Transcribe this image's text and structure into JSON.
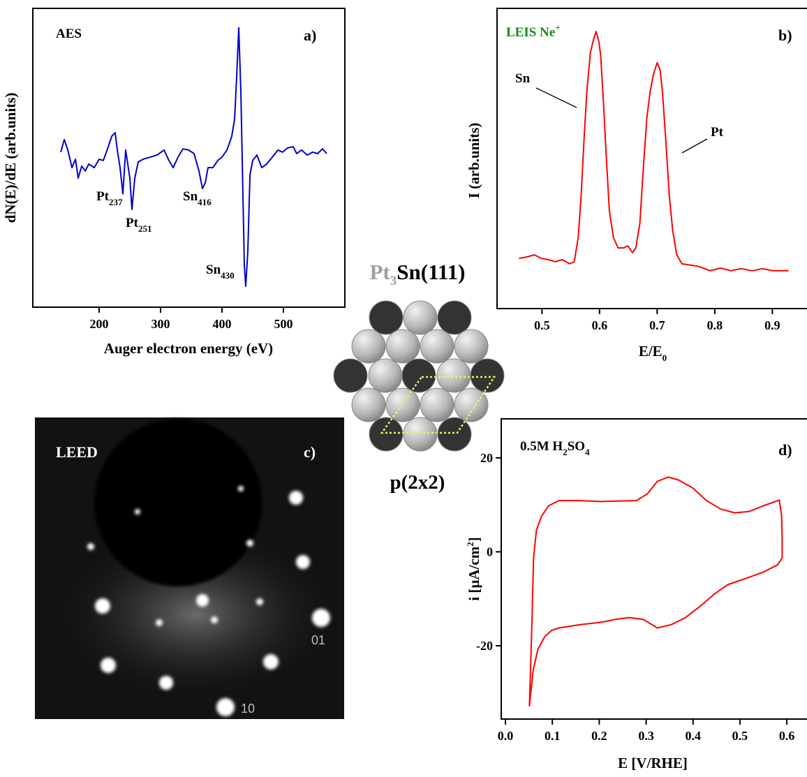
{
  "chart_data": [
    {
      "type": "line",
      "title": "AES",
      "panel": "a)",
      "xlabel": "Auger electron energy (eV)",
      "ylabel": "dN(E)/dE (arb.units)",
      "xlim": [
        92,
        600
      ],
      "ylim": [
        0,
        100
      ],
      "xticks": [
        200,
        300,
        400,
        500
      ],
      "series": [
        {
          "color": "#0000cc",
          "x": [
            137.5,
            143.2,
            148.9,
            155.7,
            161.4,
            165.9,
            171.6,
            177.3,
            183,
            192,
            200,
            206.8,
            214.8,
            220.5,
            226.1,
            229.5,
            234.1,
            238.6,
            243.2,
            246.6,
            250,
            253.4,
            258,
            263.6,
            271.6,
            283,
            294.3,
            305.7,
            313.6,
            320.5,
            328.4,
            336.4,
            345.5,
            354.5,
            362.5,
            368.2,
            372.7,
            377.3,
            385.2,
            393.2,
            400,
            408,
            415.9,
            420.5,
            423.9,
            427.3,
            430.7,
            434.1,
            436.4,
            438.6,
            442,
            445.5,
            450,
            456.8,
            464.8,
            472.7,
            481.8,
            490.9,
            498.9,
            506.8,
            515.9,
            521.6,
            529.5,
            538.6,
            547.7,
            555.7,
            563.6,
            570.5
          ],
          "values": [
            51.9,
            56.1,
            52.6,
            46.7,
            49.5,
            43.2,
            47.2,
            45.6,
            47.9,
            46.7,
            49.5,
            49.1,
            53.7,
            57.2,
            58.4,
            52.6,
            46.7,
            37.9,
            52.6,
            47.9,
            43.2,
            32.7,
            43.2,
            48.6,
            49.5,
            50.2,
            50.9,
            52.6,
            49.1,
            46.7,
            50.2,
            53,
            52.6,
            51.4,
            45.6,
            39.7,
            41.6,
            46.7,
            46.7,
            49.1,
            50.2,
            52.6,
            57.2,
            63.1,
            77.1,
            93.5,
            72.4,
            37.4,
            14,
            7,
            18.7,
            44.4,
            49.1,
            50.9,
            46.7,
            47.9,
            50.2,
            52.6,
            51.9,
            53.3,
            53.7,
            51.4,
            52.6,
            50.9,
            51.9,
            51.4,
            53,
            51.4
          ]
        }
      ],
      "annotations": [
        {
          "text": "Pt",
          "sub": "237"
        },
        {
          "text": "Pt",
          "sub": "251"
        },
        {
          "text": "Sn",
          "sub": "416"
        },
        {
          "text": "Sn",
          "sub": "430"
        }
      ]
    },
    {
      "type": "line",
      "title": [
        "LEIS Ne",
        "+"
      ],
      "title_color": "#138a13",
      "panel": "b)",
      "xlabel": [
        "E/E",
        "0"
      ],
      "ylabel": "I (arb.units)",
      "xlim": [
        0.422,
        0.965
      ],
      "ylim": [
        0,
        100
      ],
      "xticks": [
        0.5,
        0.6,
        0.7,
        0.8,
        0.9
      ],
      "series": [
        {
          "color": "#ff0000",
          "x": [
            0.46,
            0.474,
            0.487,
            0.499,
            0.511,
            0.523,
            0.535,
            0.548,
            0.556,
            0.563,
            0.568,
            0.573,
            0.578,
            0.584,
            0.59,
            0.594,
            0.599,
            0.602,
            0.607,
            0.612,
            0.617,
            0.624,
            0.632,
            0.642,
            0.649,
            0.657,
            0.663,
            0.67,
            0.676,
            0.682,
            0.688,
            0.694,
            0.7,
            0.705,
            0.709,
            0.715,
            0.721,
            0.727,
            0.734,
            0.743,
            0.761,
            0.773,
            0.792,
            0.81,
            0.828,
            0.846,
            0.865,
            0.883,
            0.901,
            0.928
          ],
          "values": [
            16.7,
            17.2,
            17.9,
            16.7,
            16.3,
            15.6,
            16.3,
            14.9,
            15.6,
            23.7,
            37.7,
            56.3,
            72.6,
            85.3,
            90,
            92.3,
            88.8,
            84.2,
            67.9,
            49.3,
            32.6,
            23.7,
            20.2,
            20.2,
            20.9,
            18.6,
            20.2,
            28.4,
            47,
            63.3,
            72.6,
            78.4,
            81.9,
            79.5,
            72.6,
            56.3,
            37.7,
            26,
            17.9,
            14.9,
            14.4,
            14,
            12.6,
            13.5,
            12.6,
            13.3,
            12.6,
            13.3,
            12.6,
            12.6
          ]
        }
      ],
      "annotations": [
        {
          "text": "Sn"
        },
        {
          "text": "Pt"
        }
      ]
    },
    {
      "type": "line",
      "title": [
        "0.5M H",
        "2",
        "SO",
        "4"
      ],
      "panel": "d)",
      "xlabel": "E [V/RHE]",
      "ylabel": [
        "i [µA/cm",
        "2",
        "]"
      ],
      "xlim": [
        -0.009,
        0.649
      ],
      "ylim": [
        -35.6,
        28.3
      ],
      "xticks": [
        {
          "value": 0,
          "label": "0.0"
        },
        0.1,
        0.2,
        0.3,
        0.4,
        0.5,
        0.6
      ],
      "yticks": [
        20,
        0,
        -20
      ],
      "series": [
        {
          "color": "#ff0000",
          "x": [
            0.051,
            0.054,
            0.057,
            0.06,
            0.066,
            0.077,
            0.092,
            0.114,
            0.159,
            0.204,
            0.279,
            0.302,
            0.324,
            0.347,
            0.369,
            0.399,
            0.429,
            0.459,
            0.489,
            0.52,
            0.55,
            0.584,
            0.589,
            0.59,
            0.59,
            0.58,
            0.55,
            0.52,
            0.474,
            0.444,
            0.414,
            0.384,
            0.354,
            0.324,
            0.294,
            0.264,
            0.234,
            0.204,
            0.159,
            0.114,
            0.099,
            0.084,
            0.069,
            0.059,
            0.051
          ],
          "values": [
            -32.9,
            -23.6,
            -13.2,
            -1.3,
            4.6,
            7.6,
            9.8,
            10.9,
            10.9,
            10.7,
            10.9,
            12.3,
            15,
            15.9,
            15.3,
            13.6,
            10.9,
            9.1,
            8.3,
            8.6,
            9.8,
            11,
            7.6,
            2.4,
            -1.3,
            -2.8,
            -4.3,
            -5.4,
            -7,
            -9.1,
            -11.7,
            -14,
            -15.5,
            -16.2,
            -14.4,
            -14,
            -14.4,
            -15,
            -15.5,
            -16.2,
            -16.7,
            -18,
            -20.8,
            -25.3,
            -32.9
          ]
        }
      ]
    }
  ],
  "leed": {
    "label": "LEED",
    "panel": "c)",
    "spots": [
      "01",
      "10"
    ]
  },
  "structure": {
    "formula": [
      "Pt",
      "3",
      "Sn(111)"
    ],
    "cell": "p(2x2)"
  }
}
